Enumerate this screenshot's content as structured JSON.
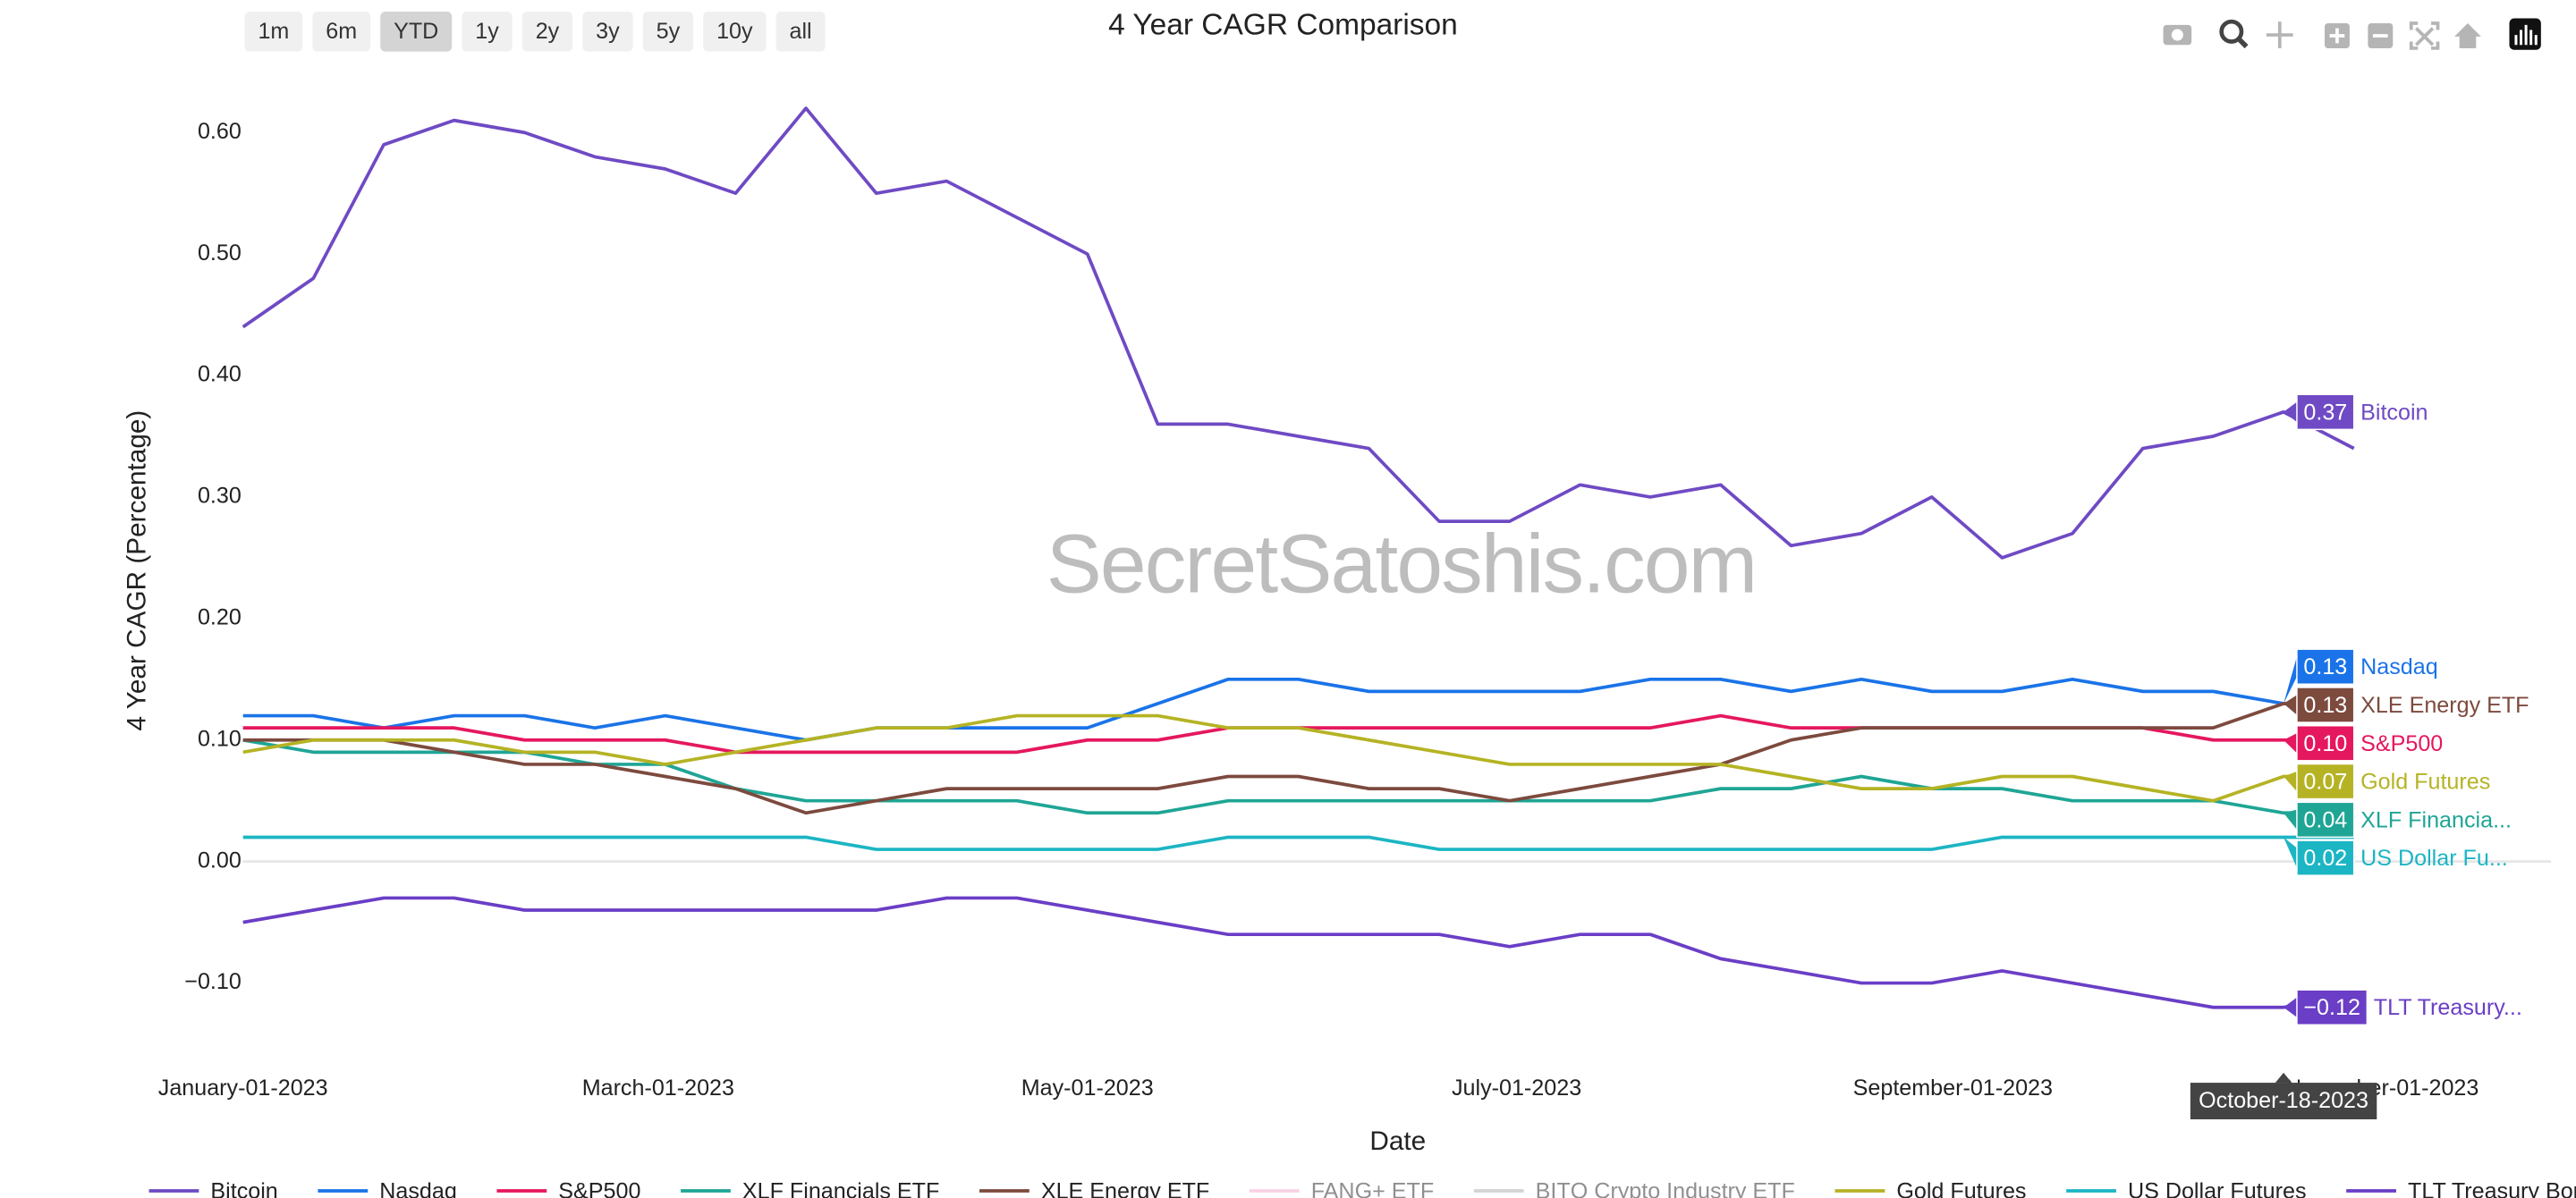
{
  "range_buttons": {
    "labels": [
      "1m",
      "6m",
      "YTD",
      "1y",
      "2y",
      "3y",
      "5y",
      "10y",
      "all"
    ],
    "active": "YTD"
  },
  "watermark": "SecretSatoshis.com",
  "chart_data": {
    "type": "line",
    "title": "4 Year CAGR Comparison",
    "x_label": "Date",
    "y_label": "4 Year CAGR (Percentage)",
    "x": [
      "2023-01-01",
      "2023-01-11",
      "2023-01-21",
      "2023-01-31",
      "2023-02-10",
      "2023-02-20",
      "2023-03-02",
      "2023-03-12",
      "2023-03-22",
      "2023-04-01",
      "2023-04-11",
      "2023-04-21",
      "2023-05-01",
      "2023-05-11",
      "2023-05-21",
      "2023-05-31",
      "2023-06-10",
      "2023-06-20",
      "2023-06-30",
      "2023-07-10",
      "2023-07-20",
      "2023-07-30",
      "2023-08-09",
      "2023-08-19",
      "2023-08-29",
      "2023-09-08",
      "2023-09-18",
      "2023-09-28",
      "2023-10-08",
      "2023-10-18",
      "2023-10-28"
    ],
    "xlim": [
      "2023-01-01",
      "2023-11-25"
    ],
    "xticks": [
      {
        "value": "2023-01-01",
        "label": "January-01-2023"
      },
      {
        "value": "2023-03-01",
        "label": "March-01-2023"
      },
      {
        "value": "2023-05-01",
        "label": "May-01-2023"
      },
      {
        "value": "2023-07-01",
        "label": "July-01-2023"
      },
      {
        "value": "2023-09-01",
        "label": "September-01-2023"
      },
      {
        "value": "2023-11-01",
        "label": "November-01-2023"
      }
    ],
    "ylim": [
      -0.167,
      0.668
    ],
    "yticks": [
      {
        "value": -0.1,
        "label": "−0.10"
      },
      {
        "value": 0,
        "label": "0.00"
      },
      {
        "value": 0.1,
        "label": "0.10"
      },
      {
        "value": 0.2,
        "label": "0.20"
      },
      {
        "value": 0.3,
        "label": "0.30"
      },
      {
        "value": 0.4,
        "label": "0.40"
      },
      {
        "value": 0.5,
        "label": "0.50"
      },
      {
        "value": 0.6,
        "label": "0.60"
      }
    ],
    "grid": false,
    "zeroline": true,
    "legend": "bottom",
    "hover": {
      "x": "2023-10-18",
      "label": "October-18-2023"
    },
    "series": [
      {
        "name": "Bitcoin",
        "color": "#6f4ac4",
        "hover_value": 0.37,
        "hover_name": "Bitcoin",
        "values": [
          0.44,
          0.48,
          0.59,
          0.61,
          0.6,
          0.58,
          0.57,
          0.55,
          0.62,
          0.55,
          0.56,
          0.53,
          0.5,
          0.36,
          0.36,
          0.35,
          0.34,
          0.28,
          0.28,
          0.31,
          0.3,
          0.31,
          0.26,
          0.27,
          0.3,
          0.25,
          0.27,
          0.34,
          0.35,
          0.37,
          0.34
        ]
      },
      {
        "name": "Nasdaq",
        "color": "#1a73e8",
        "hover_value": 0.13,
        "hover_name": "Nasdaq",
        "values": [
          0.12,
          0.12,
          0.11,
          0.12,
          0.12,
          0.11,
          0.12,
          0.11,
          0.1,
          0.11,
          0.11,
          0.11,
          0.11,
          0.13,
          0.15,
          0.15,
          0.14,
          0.14,
          0.14,
          0.14,
          0.15,
          0.15,
          0.14,
          0.15,
          0.14,
          0.14,
          0.15,
          0.14,
          0.14,
          0.13,
          0.13
        ]
      },
      {
        "name": "S&P500",
        "color": "#e5175f",
        "hover_value": 0.1,
        "hover_name": "S&P500",
        "values": [
          0.11,
          0.11,
          0.11,
          0.11,
          0.1,
          0.1,
          0.1,
          0.09,
          0.09,
          0.09,
          0.09,
          0.09,
          0.1,
          0.1,
          0.11,
          0.11,
          0.11,
          0.11,
          0.11,
          0.11,
          0.11,
          0.12,
          0.11,
          0.11,
          0.11,
          0.11,
          0.11,
          0.11,
          0.1,
          0.1,
          0.1
        ]
      },
      {
        "name": "XLF Financials ETF",
        "color": "#1fa595",
        "hover_value": 0.04,
        "hover_name": "XLF Financia...",
        "values": [
          0.1,
          0.09,
          0.09,
          0.09,
          0.09,
          0.08,
          0.08,
          0.06,
          0.05,
          0.05,
          0.05,
          0.05,
          0.04,
          0.04,
          0.05,
          0.05,
          0.05,
          0.05,
          0.05,
          0.05,
          0.05,
          0.06,
          0.06,
          0.07,
          0.06,
          0.06,
          0.05,
          0.05,
          0.05,
          0.04,
          0.04
        ]
      },
      {
        "name": "XLE Energy ETF",
        "color": "#7d4a3e",
        "hover_value": 0.13,
        "hover_name": "XLE Energy ETF",
        "values": [
          0.1,
          0.1,
          0.1,
          0.09,
          0.08,
          0.08,
          0.07,
          0.06,
          0.04,
          0.05,
          0.06,
          0.06,
          0.06,
          0.06,
          0.07,
          0.07,
          0.06,
          0.06,
          0.05,
          0.06,
          0.07,
          0.08,
          0.1,
          0.11,
          0.11,
          0.11,
          0.11,
          0.11,
          0.11,
          0.13,
          0.13
        ]
      },
      {
        "name": "FANG+ ETF",
        "color": "#f2a7c9",
        "visible": "legendonly"
      },
      {
        "name": "BITQ Crypto Industry ETF",
        "color": "#a9a9a9",
        "visible": "legendonly"
      },
      {
        "name": "Gold Futures",
        "color": "#b5b324",
        "hover_value": 0.07,
        "hover_name": "Gold Futures",
        "values": [
          0.09,
          0.1,
          0.1,
          0.1,
          0.09,
          0.09,
          0.08,
          0.09,
          0.1,
          0.11,
          0.11,
          0.12,
          0.12,
          0.12,
          0.11,
          0.11,
          0.1,
          0.09,
          0.08,
          0.08,
          0.08,
          0.08,
          0.07,
          0.06,
          0.06,
          0.07,
          0.07,
          0.06,
          0.05,
          0.07,
          0.07
        ]
      },
      {
        "name": "US Dollar Futures",
        "color": "#1cb5c4",
        "hover_value": 0.02,
        "hover_name": "US Dollar Fu...",
        "values": [
          0.02,
          0.02,
          0.02,
          0.02,
          0.02,
          0.02,
          0.02,
          0.02,
          0.02,
          0.01,
          0.01,
          0.01,
          0.01,
          0.01,
          0.02,
          0.02,
          0.02,
          0.01,
          0.01,
          0.01,
          0.01,
          0.01,
          0.01,
          0.01,
          0.01,
          0.02,
          0.02,
          0.02,
          0.02,
          0.02,
          0.02
        ]
      },
      {
        "name": "TLT Treasury Bond ETF",
        "color": "#6a3ec6",
        "hover_value": -0.12,
        "hover_value_label": "−0.12",
        "hover_name": "TLT Treasury...",
        "values": [
          -0.05,
          -0.04,
          -0.03,
          -0.03,
          -0.04,
          -0.04,
          -0.04,
          -0.04,
          -0.04,
          -0.04,
          -0.03,
          -0.03,
          -0.04,
          -0.05,
          -0.06,
          -0.06,
          -0.06,
          -0.06,
          -0.07,
          -0.06,
          -0.06,
          -0.08,
          -0.09,
          -0.1,
          -0.1,
          -0.09,
          -0.1,
          -0.11,
          -0.12,
          -0.12,
          -0.11
        ]
      }
    ]
  }
}
